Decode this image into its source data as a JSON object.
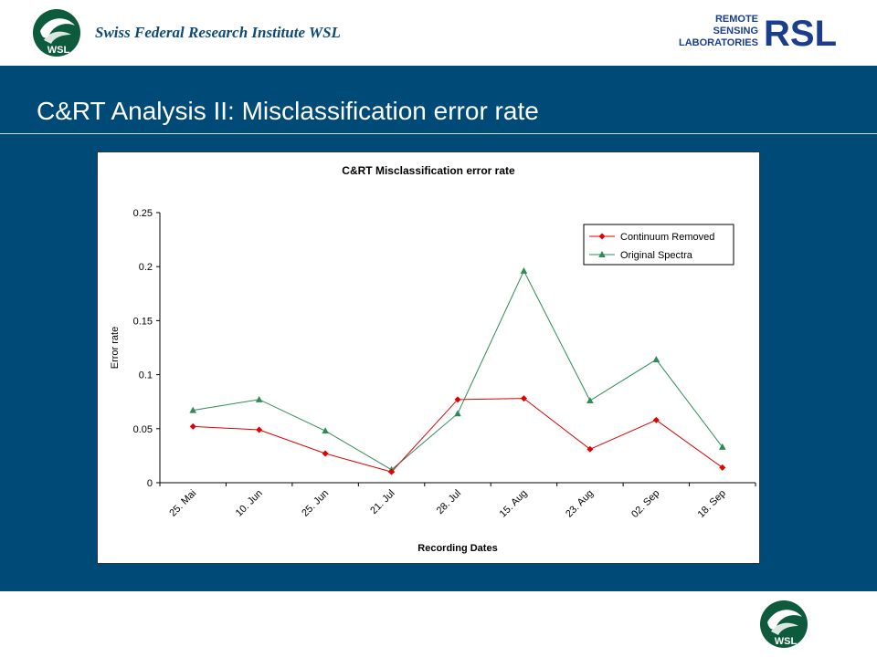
{
  "header": {
    "institute": "Swiss Federal  Research Institute WSL",
    "wsl_logo_text": "WSL",
    "rsl_logo_lines": [
      "REMOTE",
      "SENSING",
      "LABORATORIES"
    ],
    "rsl_logo_mark": "RSL"
  },
  "slide": {
    "title": "C&RT Analysis II: Misclassification error rate"
  },
  "colors": {
    "panel": "#004a78",
    "series_continuum": "#e00000",
    "series_original": "#2e8b57"
  },
  "chart_data": {
    "type": "line",
    "title": "C&RT Misclassification error rate",
    "xlabel": "Recording Dates",
    "ylabel": "Error rate",
    "categories": [
      "25. Mai",
      "10. Jun",
      "25. Jun",
      "21. Jul",
      "28. Jul",
      "15. Aug",
      "23. Aug",
      "02. Sep",
      "18. Sep"
    ],
    "ylim": [
      0,
      0.25
    ],
    "yticks": [
      "0",
      "0.05",
      "0.1",
      "0.15",
      "0.2",
      "0.25"
    ],
    "grid": false,
    "legend_position": "top-right",
    "series": [
      {
        "name": "Continuum Removed",
        "color": "#e00000",
        "marker": "diamond",
        "values": [
          0.052,
          0.049,
          0.027,
          0.01,
          0.077,
          0.078,
          0.031,
          0.058,
          0.014
        ]
      },
      {
        "name": "Original Spectra",
        "color": "#2e8b57",
        "marker": "triangle",
        "values": [
          0.067,
          0.077,
          0.048,
          0.012,
          0.064,
          0.196,
          0.076,
          0.114,
          0.033
        ]
      }
    ]
  }
}
